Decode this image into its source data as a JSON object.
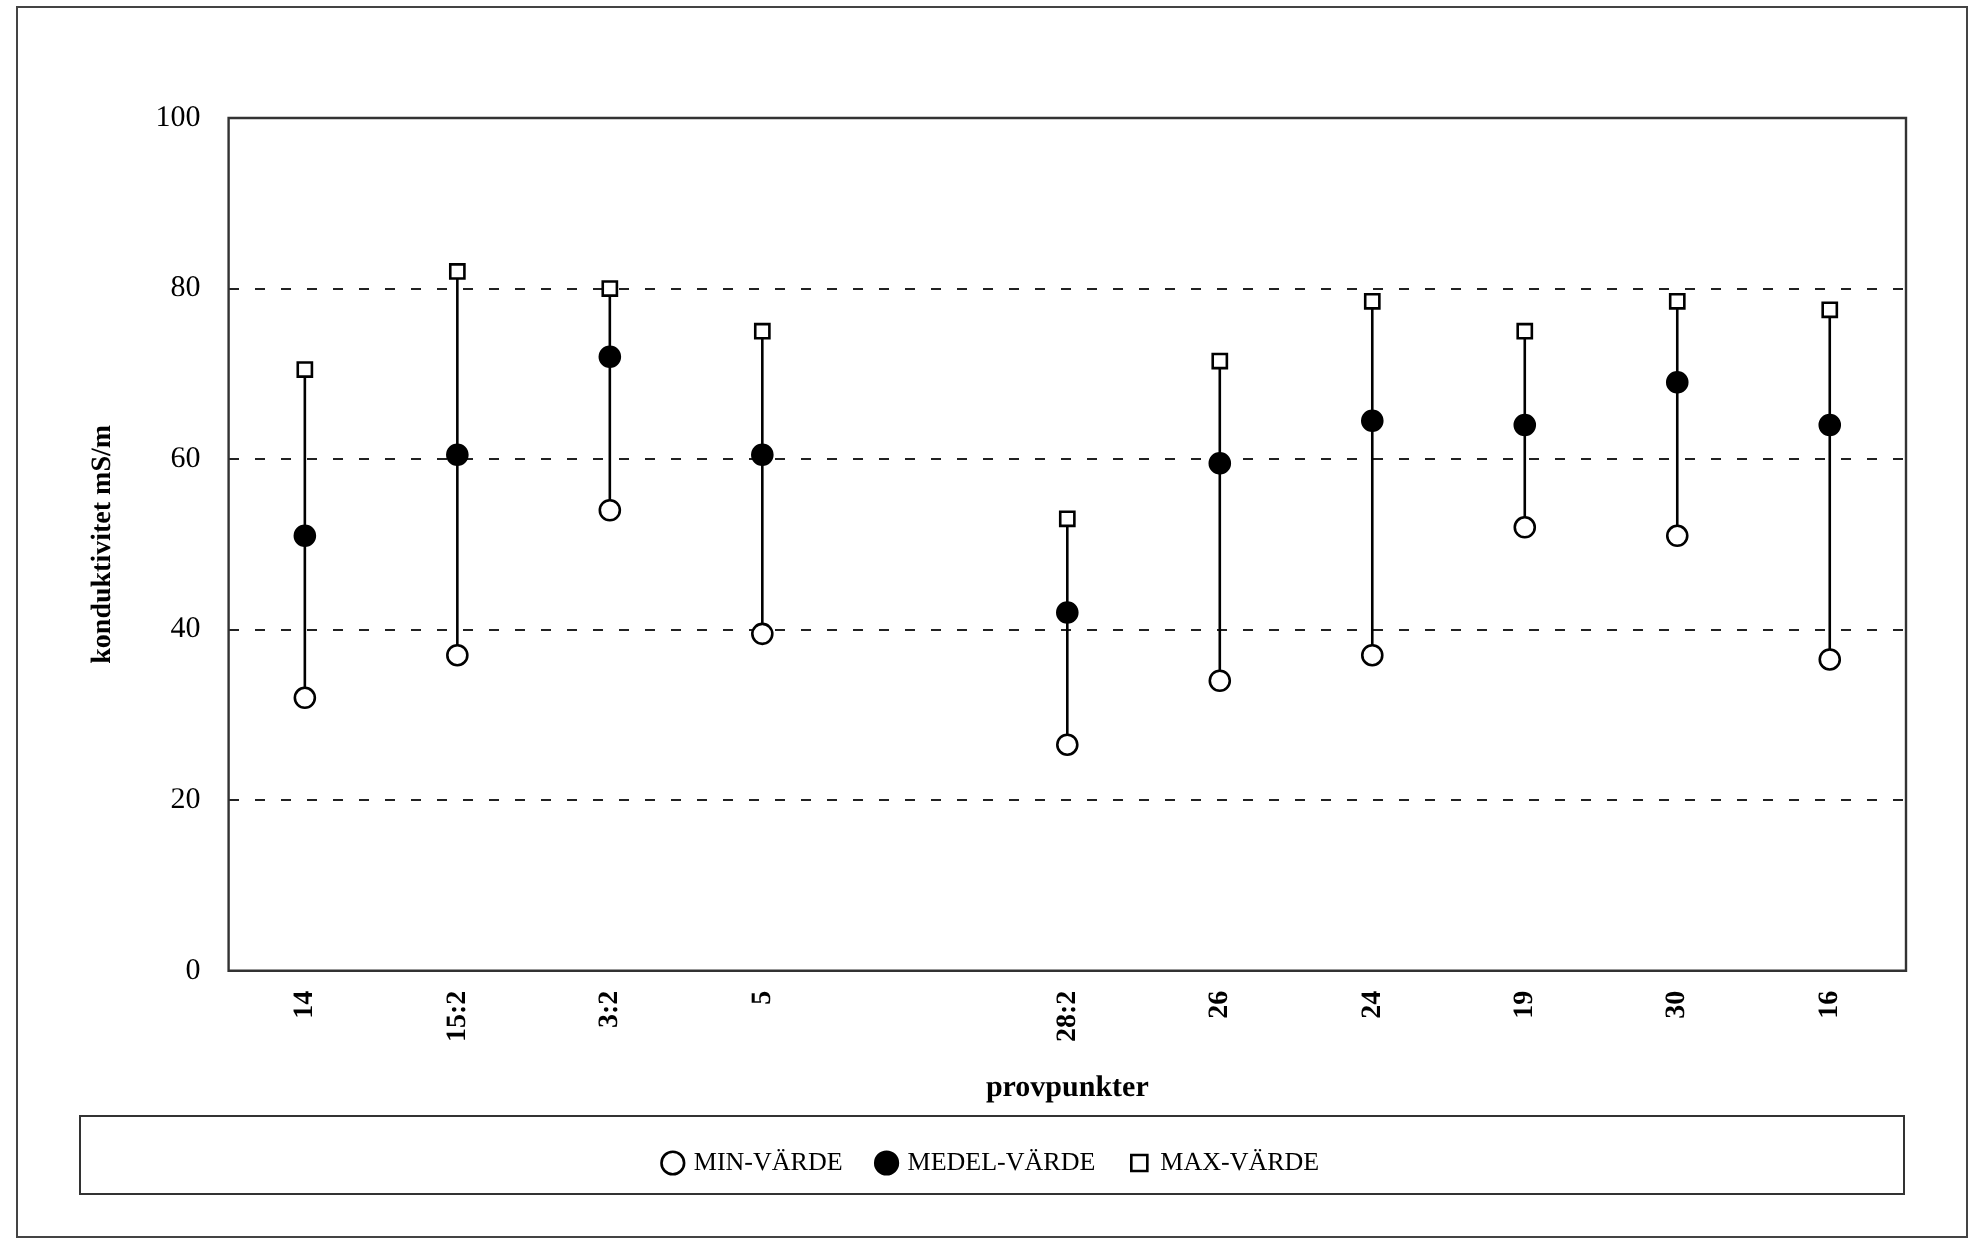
{
  "chart_data": {
    "type": "scatter",
    "xlabel": "provpunkter",
    "ylabel": "konduktivitet mS/m",
    "categories": [
      "14",
      "15:2",
      "3:2",
      "5",
      null,
      "28:2",
      "26",
      "24",
      "19",
      "30",
      "16"
    ],
    "series": [
      {
        "name": "MIN-VÄRDE",
        "color": "#000000",
        "marker": "circle",
        "values": [
          32,
          37,
          54,
          39.5,
          null,
          26.5,
          34,
          37,
          52,
          51,
          36.5
        ]
      },
      {
        "name": "MEDEL-VÄRDE",
        "color": "#000000",
        "marker": "circle",
        "values": [
          51,
          60.5,
          72,
          60.5,
          null,
          42,
          59.5,
          64.5,
          64,
          69,
          64
        ]
      },
      {
        "name": "MAX-VÄRDE",
        "color": "#000000",
        "marker": "square",
        "values": [
          70.5,
          82,
          80,
          75,
          null,
          53,
          71.5,
          78.5,
          75,
          78.5,
          77.5
        ]
      }
    ],
    "ylim": [
      0,
      100
    ],
    "yticks": [
      0,
      20,
      40,
      60,
      80,
      100
    ],
    "grid": "y",
    "legend": "bottom"
  }
}
